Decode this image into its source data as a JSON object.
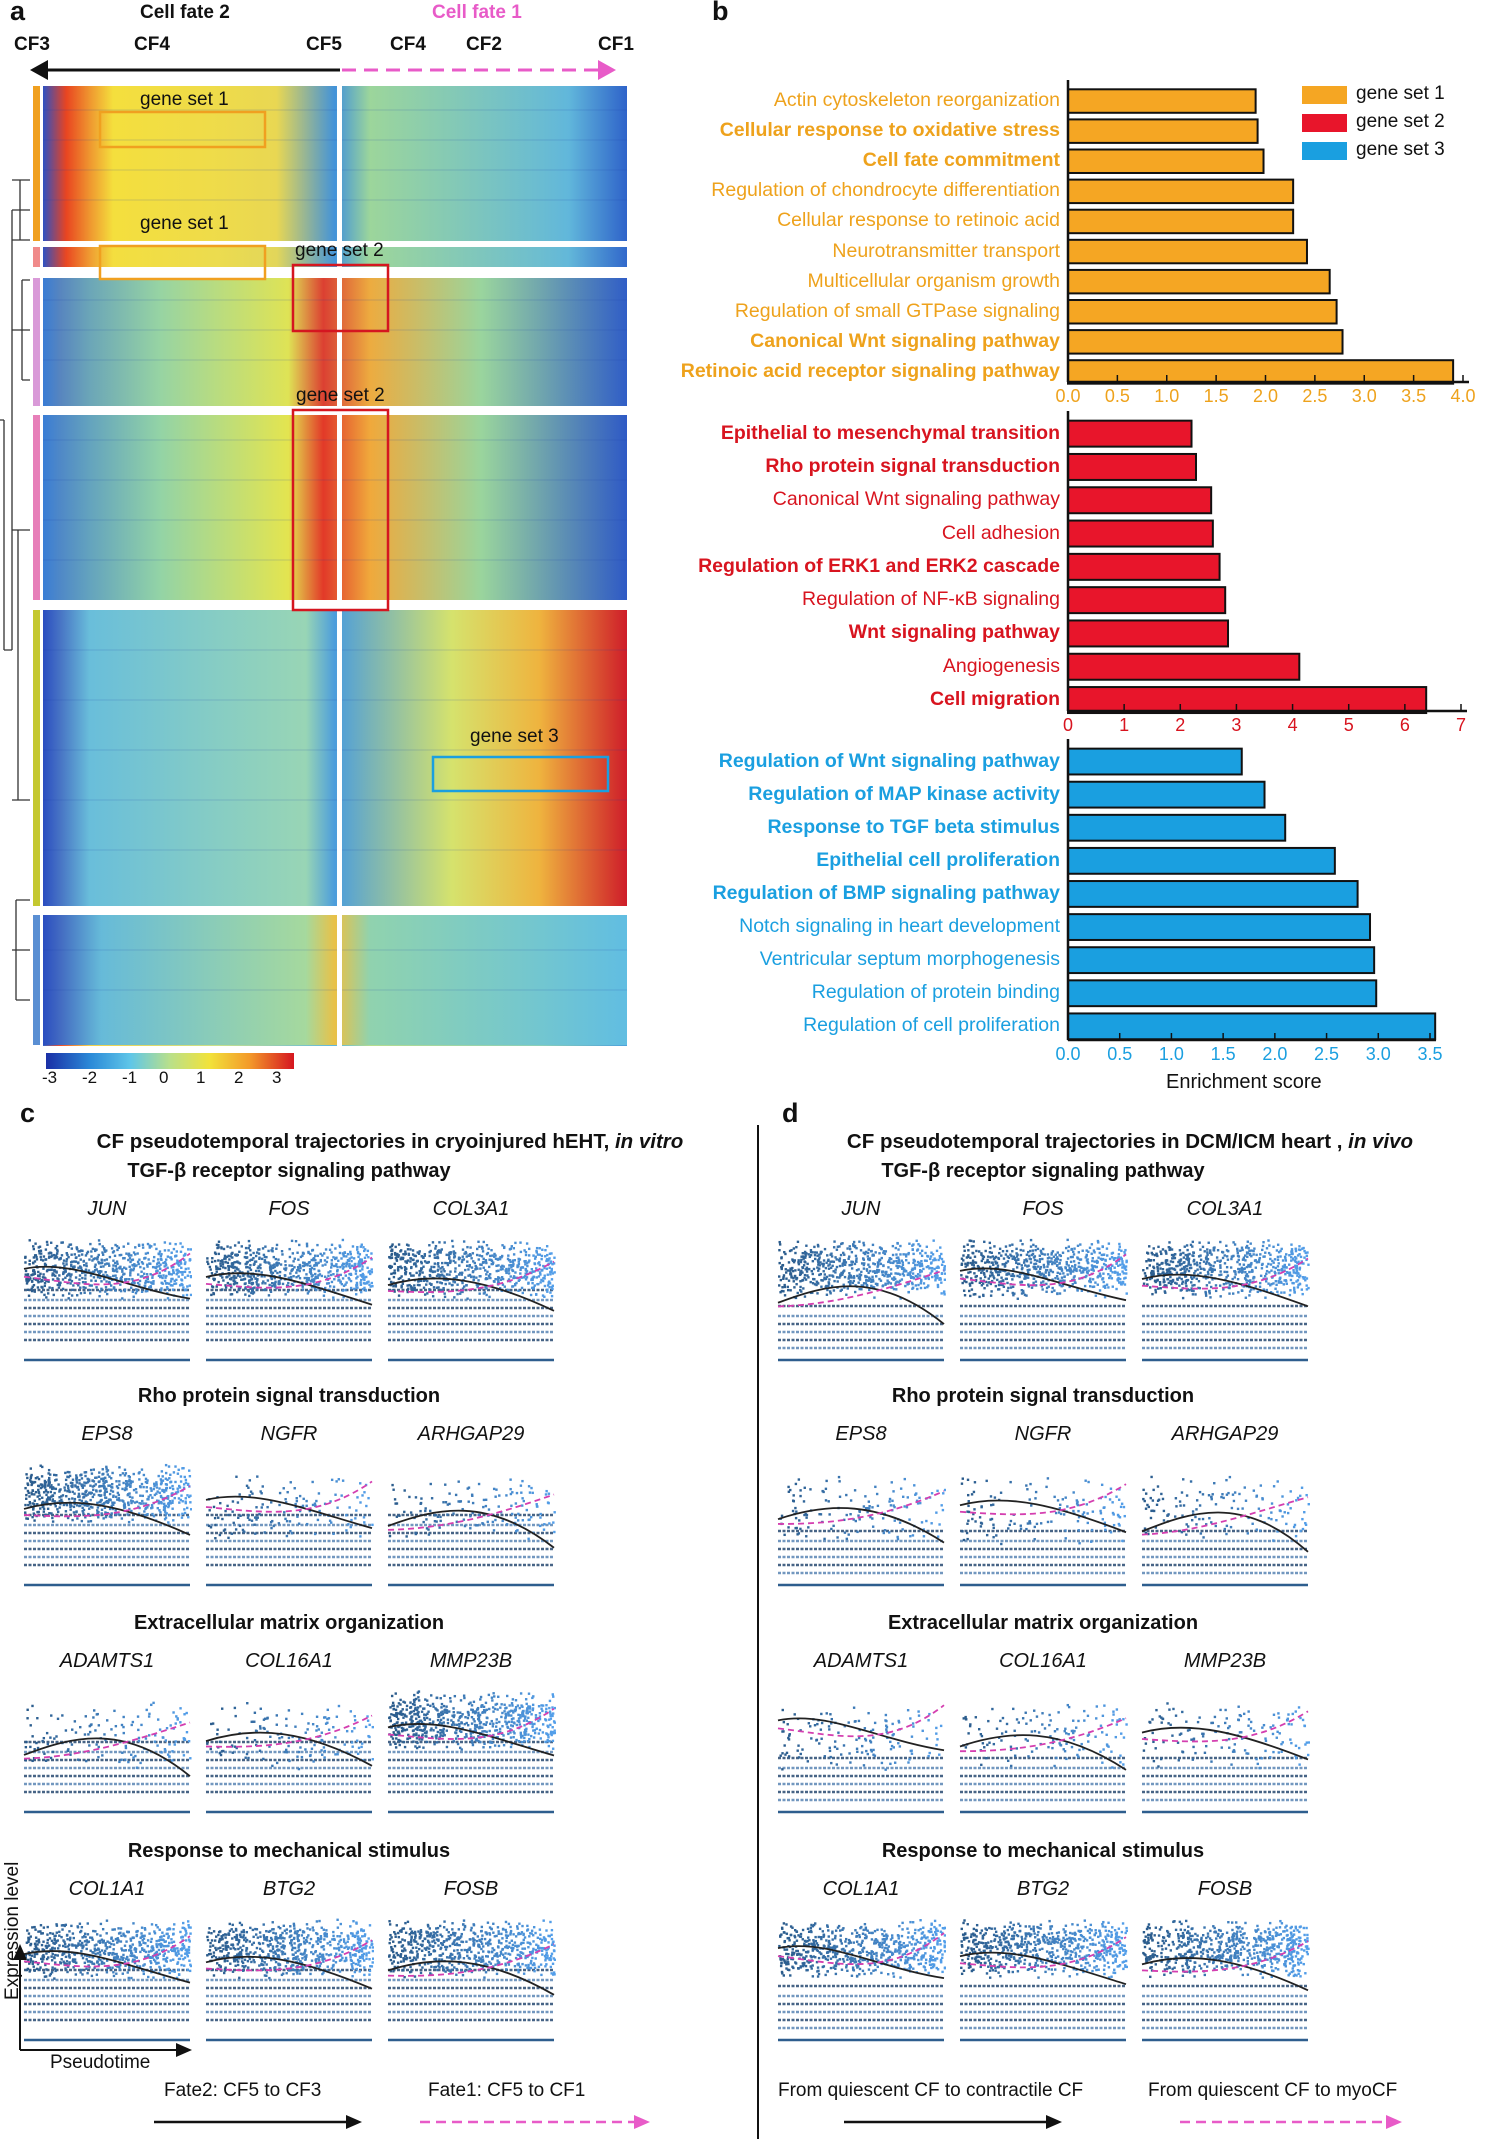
{
  "panel_a": {
    "label": "a",
    "cell_fate_2": "Cell fate 2",
    "cell_fate_1": "Cell fate 1",
    "stage_labels": [
      "CF3",
      "CF4",
      "CF5",
      "CF4",
      "CF2",
      "CF1"
    ],
    "gene_set_labels": [
      "gene set 1",
      "gene set 1",
      "gene set 2",
      "gene set 2",
      "gene set 3"
    ],
    "colorbar_ticks": [
      "-3",
      "-2",
      "-1",
      "0",
      "1",
      "2",
      "3"
    ]
  },
  "panel_b": {
    "label": "b",
    "legend": [
      {
        "name": "gene set 1",
        "color": "#f5a623"
      },
      {
        "name": "gene set 2",
        "color": "#e8152b"
      },
      {
        "name": "gene set 3",
        "color": "#1a9fe0"
      }
    ],
    "xlabel": "Enrichment score",
    "chart_data": [
      {
        "type": "bar",
        "series_name": "gene set 1",
        "color": "#f5a623",
        "xlim": [
          0,
          4.0
        ],
        "ticks": [
          "0.0",
          "0.5",
          "1.0",
          "1.5",
          "2.0",
          "2.5",
          "3.0",
          "3.5",
          "4.0"
        ],
        "categories": [
          "Actin cytoskeleton reorganization",
          "Cellular response to oxidative stress",
          "Cell fate commitment",
          "Regulation of chondrocyte differentiation",
          "Cellular response to retinoic acid",
          "Neurotransmitter transport",
          "Multicellular organism growth",
          "Regulation of small GTPase signaling",
          "Canonical Wnt signaling pathway",
          "Retinoic acid receptor signaling pathway"
        ],
        "bold": [
          false,
          true,
          true,
          false,
          false,
          false,
          false,
          false,
          true,
          true
        ],
        "values": [
          1.9,
          1.92,
          1.98,
          2.28,
          2.28,
          2.42,
          2.65,
          2.72,
          2.78,
          3.9
        ]
      },
      {
        "type": "bar",
        "series_name": "gene set 2",
        "color": "#e8152b",
        "xlim": [
          0,
          7
        ],
        "ticks": [
          "0",
          "1",
          "2",
          "3",
          "4",
          "5",
          "6",
          "7"
        ],
        "categories": [
          "Epithelial to mesenchymal transition",
          "Rho protein signal transduction",
          "Canonical Wnt signaling pathway",
          "Cell adhesion",
          "Regulation of ERK1 and ERK2 cascade",
          "Regulation of NF-κB signaling",
          "Wnt signaling pathway",
          "Angiogenesis",
          "Cell migration"
        ],
        "bold": [
          true,
          true,
          false,
          false,
          true,
          false,
          true,
          false,
          true
        ],
        "values": [
          2.2,
          2.28,
          2.55,
          2.58,
          2.7,
          2.8,
          2.85,
          4.12,
          6.38
        ]
      },
      {
        "type": "bar",
        "series_name": "gene set 3",
        "color": "#1a9fe0",
        "xlim": [
          0,
          3.5
        ],
        "ticks": [
          "0.0",
          "0.5",
          "1.0",
          "1.5",
          "2.0",
          "2.5",
          "3.0",
          "3.5"
        ],
        "categories": [
          "Regulation of Wnt signaling pathway",
          "Regulation of MAP kinase activity",
          "Response to TGF beta stimulus",
          "Epithelial cell proliferation",
          "Regulation of BMP signaling pathway",
          "Notch signaling in heart development",
          "Ventricular septum morphogenesis",
          "Regulation of protein binding",
          "Regulation of cell proliferation"
        ],
        "bold": [
          true,
          true,
          true,
          true,
          true,
          false,
          false,
          false,
          false
        ],
        "values": [
          1.68,
          1.9,
          2.1,
          2.58,
          2.8,
          2.92,
          2.96,
          2.98,
          3.55
        ]
      }
    ]
  },
  "panel_c": {
    "label": "c",
    "title": "CF pseudotemporal trajectories in cryoinjured hEHT, ",
    "title_italic": "in vitro",
    "pathways": [
      {
        "name": "TGF-β receptor signaling pathway",
        "genes": [
          "JUN",
          "FOS",
          "COL3A1"
        ]
      },
      {
        "name": "Rho protein signal transduction",
        "genes": [
          "EPS8",
          "NGFR",
          "ARHGAP29"
        ]
      },
      {
        "name": "Extracellular matrix organization",
        "genes": [
          "ADAMTS1",
          "COL16A1",
          "MMP23B"
        ]
      },
      {
        "name": "Response to mechanical stimulus",
        "genes": [
          "COL1A1",
          "BTG2",
          "FOSB"
        ]
      }
    ],
    "y_axis": "Expression level",
    "x_axis": "Pseudotime",
    "legend_black": "Fate2: CF5 to CF3",
    "legend_pink": "Fate1: CF5 to CF1"
  },
  "panel_d": {
    "label": "d",
    "title": "CF pseudotemporal trajectories in DCM/ICM heart , ",
    "title_italic": "in vivo",
    "pathways": [
      {
        "name": "TGF-β receptor signaling pathway",
        "genes": [
          "JUN",
          "FOS",
          "COL3A1"
        ]
      },
      {
        "name": "Rho protein signal transduction",
        "genes": [
          "EPS8",
          "NGFR",
          "ARHGAP29"
        ]
      },
      {
        "name": "Extracellular matrix organization",
        "genes": [
          "ADAMTS1",
          "COL16A1",
          "MMP23B"
        ]
      },
      {
        "name": "Response to mechanical stimulus",
        "genes": [
          "COL1A1",
          "BTG2",
          "FOSB"
        ]
      }
    ],
    "legend_black": "From quiescent CF to contractile CF",
    "legend_pink": "From quiescent CF to myoCF"
  }
}
